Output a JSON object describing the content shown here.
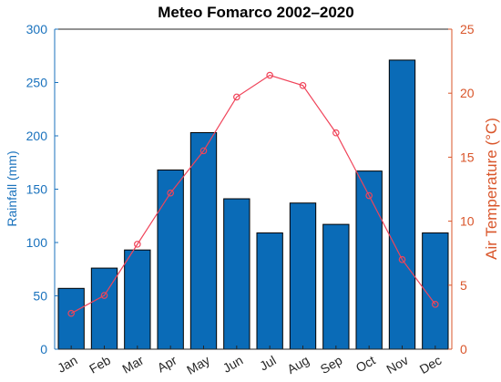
{
  "chart_data": {
    "type": "bar",
    "title": "Meteo Fomarco 2002–2020",
    "categories": [
      "Jan",
      "Feb",
      "Mar",
      "Apr",
      "May",
      "Jun",
      "Jul",
      "Aug",
      "Sep",
      "Oct",
      "Nov",
      "Dec"
    ],
    "series": [
      {
        "name": "Rainfall (mm)",
        "type": "bar",
        "axis": "left",
        "color": "#0a6bb7",
        "values": [
          57,
          76,
          93,
          168,
          203,
          141,
          109,
          137,
          117,
          167,
          271,
          109
        ]
      },
      {
        "name": "Air Temperature (°C)",
        "type": "line",
        "axis": "right",
        "color": "#f0445a",
        "marker": "circle",
        "values": [
          2.8,
          4.2,
          8.2,
          12.2,
          15.5,
          19.7,
          21.4,
          20.6,
          16.9,
          12.0,
          7.0,
          3.5
        ]
      }
    ],
    "ylabel": "Rainfall (mm)",
    "ylim": [
      0,
      300
    ],
    "yticks": [
      0,
      50,
      100,
      150,
      200,
      250,
      300
    ],
    "y2label": "Air Temperature (°C)",
    "y2lim": [
      0,
      25
    ],
    "y2ticks": [
      0,
      5,
      10,
      15,
      20,
      25
    ],
    "left_axis_color": "#1a72bd",
    "right_axis_color": "#d9552a",
    "grid": false,
    "legend": false
  }
}
